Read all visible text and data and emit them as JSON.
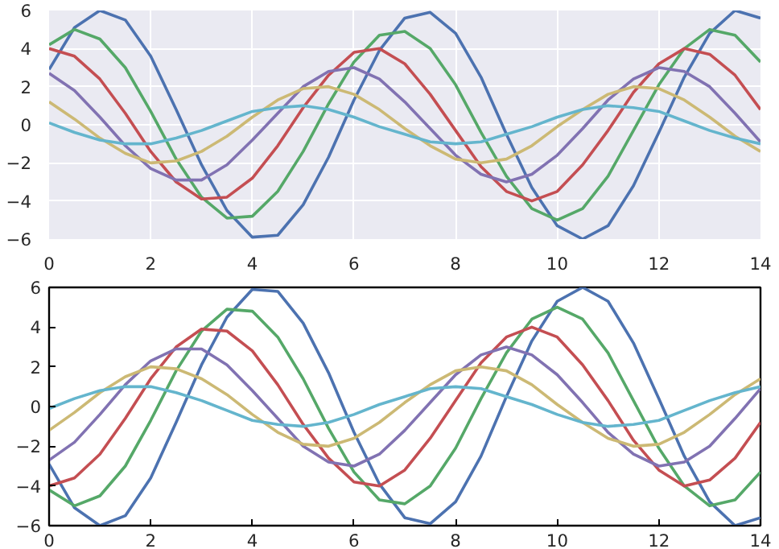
{
  "chart_data": [
    {
      "type": "line",
      "x": [
        0,
        0.5,
        1,
        1.5,
        2,
        2.5,
        3,
        3.5,
        4,
        4.5,
        5,
        5.5,
        6,
        6.5,
        7,
        7.5,
        8,
        8.5,
        9,
        9.5,
        10,
        10.5,
        11,
        11.5,
        12,
        12.5,
        13,
        13.5,
        14
      ],
      "xlim": [
        0,
        14
      ],
      "ylim": [
        -6,
        6
      ],
      "xticks": [
        0,
        2,
        4,
        6,
        8,
        10,
        12,
        14
      ],
      "yticks": [
        -6,
        -4,
        -2,
        0,
        2,
        4,
        6
      ],
      "grid": true,
      "series": [
        {
          "color": "#4c72b0",
          "values": [
            2.9,
            5.1,
            6.0,
            5.5,
            3.6,
            0.8,
            -2.1,
            -4.5,
            -5.9,
            -5.8,
            -4.2,
            -1.7,
            1.3,
            3.9,
            5.6,
            5.9,
            4.8,
            2.5,
            -0.5,
            -3.3,
            -5.3,
            -6.0,
            -5.3,
            -3.2,
            -0.4,
            2.5,
            4.8,
            6.0,
            5.6
          ]
        },
        {
          "color": "#55a868",
          "values": [
            4.2,
            5.0,
            4.5,
            3.0,
            0.7,
            -1.8,
            -3.8,
            -4.9,
            -4.8,
            -3.5,
            -1.4,
            1.1,
            3.3,
            4.7,
            4.9,
            4.0,
            2.1,
            -0.4,
            -2.7,
            -4.4,
            -5.0,
            -4.4,
            -2.7,
            -0.3,
            2.1,
            4.0,
            5.0,
            4.7,
            3.3
          ]
        },
        {
          "color": "#c44e52",
          "values": [
            4.0,
            3.6,
            2.4,
            0.6,
            -1.4,
            -3.0,
            -3.9,
            -3.8,
            -2.8,
            -1.1,
            0.9,
            2.6,
            3.8,
            4.0,
            3.2,
            1.6,
            -0.3,
            -2.2,
            -3.5,
            -4.0,
            -3.5,
            -2.1,
            -0.3,
            1.7,
            3.2,
            4.0,
            3.7,
            2.6,
            0.8
          ]
        },
        {
          "color": "#8172b2",
          "values": [
            2.7,
            1.8,
            0.4,
            -1.1,
            -2.3,
            -2.9,
            -2.9,
            -2.1,
            -0.8,
            0.6,
            2.0,
            2.8,
            3.0,
            2.4,
            1.2,
            -0.2,
            -1.6,
            -2.6,
            -3.0,
            -2.6,
            -1.6,
            -0.2,
            1.3,
            2.4,
            3.0,
            2.8,
            2.0,
            0.6,
            -0.9
          ]
        },
        {
          "color": "#ccb974",
          "values": [
            1.2,
            0.3,
            -0.7,
            -1.5,
            -2.0,
            -1.9,
            -1.4,
            -0.6,
            0.4,
            1.3,
            1.9,
            2.0,
            1.6,
            0.8,
            -0.2,
            -1.1,
            -1.8,
            -2.0,
            -1.8,
            -1.1,
            -0.1,
            0.8,
            1.6,
            2.0,
            1.9,
            1.3,
            0.4,
            -0.6,
            -1.4
          ]
        },
        {
          "color": "#64b5cd",
          "values": [
            0.1,
            -0.4,
            -0.8,
            -1.0,
            -1.0,
            -0.7,
            -0.3,
            0.2,
            0.7,
            0.9,
            1.0,
            0.8,
            0.4,
            -0.1,
            -0.5,
            -0.9,
            -1.0,
            -0.9,
            -0.5,
            -0.1,
            0.4,
            0.8,
            1.0,
            0.9,
            0.7,
            0.2,
            -0.3,
            -0.7,
            -1.0
          ]
        }
      ]
    },
    {
      "type": "line",
      "x": [
        0,
        0.5,
        1,
        1.5,
        2,
        2.5,
        3,
        3.5,
        4,
        4.5,
        5,
        5.5,
        6,
        6.5,
        7,
        7.5,
        8,
        8.5,
        9,
        9.5,
        10,
        10.5,
        11,
        11.5,
        12,
        12.5,
        13,
        13.5,
        14
      ],
      "xlim": [
        0,
        14
      ],
      "ylim": [
        -6,
        6
      ],
      "xticks": [
        0,
        2,
        4,
        6,
        8,
        10,
        12,
        14
      ],
      "yticks": [
        -6,
        -4,
        -2,
        0,
        2,
        4,
        6
      ],
      "series": [
        {
          "color": "#4c72b0",
          "values": [
            -2.9,
            -5.1,
            -6.0,
            -5.5,
            -3.6,
            -0.8,
            2.1,
            4.5,
            5.9,
            5.8,
            4.2,
            1.7,
            -1.3,
            -3.9,
            -5.6,
            -5.9,
            -4.8,
            -2.5,
            0.5,
            3.3,
            5.3,
            6.0,
            5.3,
            3.2,
            0.4,
            -2.5,
            -4.8,
            -6.0,
            -5.6
          ]
        },
        {
          "color": "#55a868",
          "values": [
            -4.2,
            -5.0,
            -4.5,
            -3.0,
            -0.7,
            1.8,
            3.8,
            4.9,
            4.8,
            3.5,
            1.4,
            -1.1,
            -3.3,
            -4.7,
            -4.9,
            -4.0,
            -2.1,
            0.4,
            2.7,
            4.4,
            5.0,
            4.4,
            2.7,
            0.3,
            -2.1,
            -4.0,
            -5.0,
            -4.7,
            -3.3
          ]
        },
        {
          "color": "#c44e52",
          "values": [
            -4.0,
            -3.6,
            -2.4,
            -0.6,
            1.4,
            3.0,
            3.9,
            3.8,
            2.8,
            1.1,
            -0.9,
            -2.6,
            -3.8,
            -4.0,
            -3.2,
            -1.6,
            0.3,
            2.2,
            3.5,
            4.0,
            3.5,
            2.1,
            0.3,
            -1.7,
            -3.2,
            -4.0,
            -3.7,
            -2.6,
            -0.8
          ]
        },
        {
          "color": "#8172b2",
          "values": [
            -2.7,
            -1.8,
            -0.4,
            1.1,
            2.3,
            2.9,
            2.9,
            2.1,
            0.8,
            -0.6,
            -2.0,
            -2.8,
            -3.0,
            -2.4,
            -1.2,
            0.2,
            1.6,
            2.6,
            3.0,
            2.6,
            1.6,
            0.2,
            -1.3,
            -2.4,
            -3.0,
            -2.8,
            -2.0,
            -0.6,
            0.9
          ]
        },
        {
          "color": "#ccb974",
          "values": [
            -1.2,
            -0.3,
            0.7,
            1.5,
            2.0,
            1.9,
            1.4,
            0.6,
            -0.4,
            -1.3,
            -1.9,
            -2.0,
            -1.6,
            -0.8,
            0.2,
            1.1,
            1.8,
            2.0,
            1.8,
            1.1,
            0.1,
            -0.8,
            -1.6,
            -2.0,
            -1.9,
            -1.3,
            -0.4,
            0.6,
            1.4
          ]
        },
        {
          "color": "#64b5cd",
          "values": [
            -0.1,
            0.4,
            0.8,
            1.0,
            1.0,
            0.7,
            0.3,
            -0.2,
            -0.7,
            -0.9,
            -1.0,
            -0.8,
            -0.4,
            0.1,
            0.5,
            0.9,
            1.0,
            0.9,
            0.5,
            0.1,
            -0.4,
            -0.8,
            -1.0,
            -0.9,
            -0.7,
            -0.2,
            0.3,
            0.7,
            1.0
          ]
        }
      ]
    }
  ]
}
